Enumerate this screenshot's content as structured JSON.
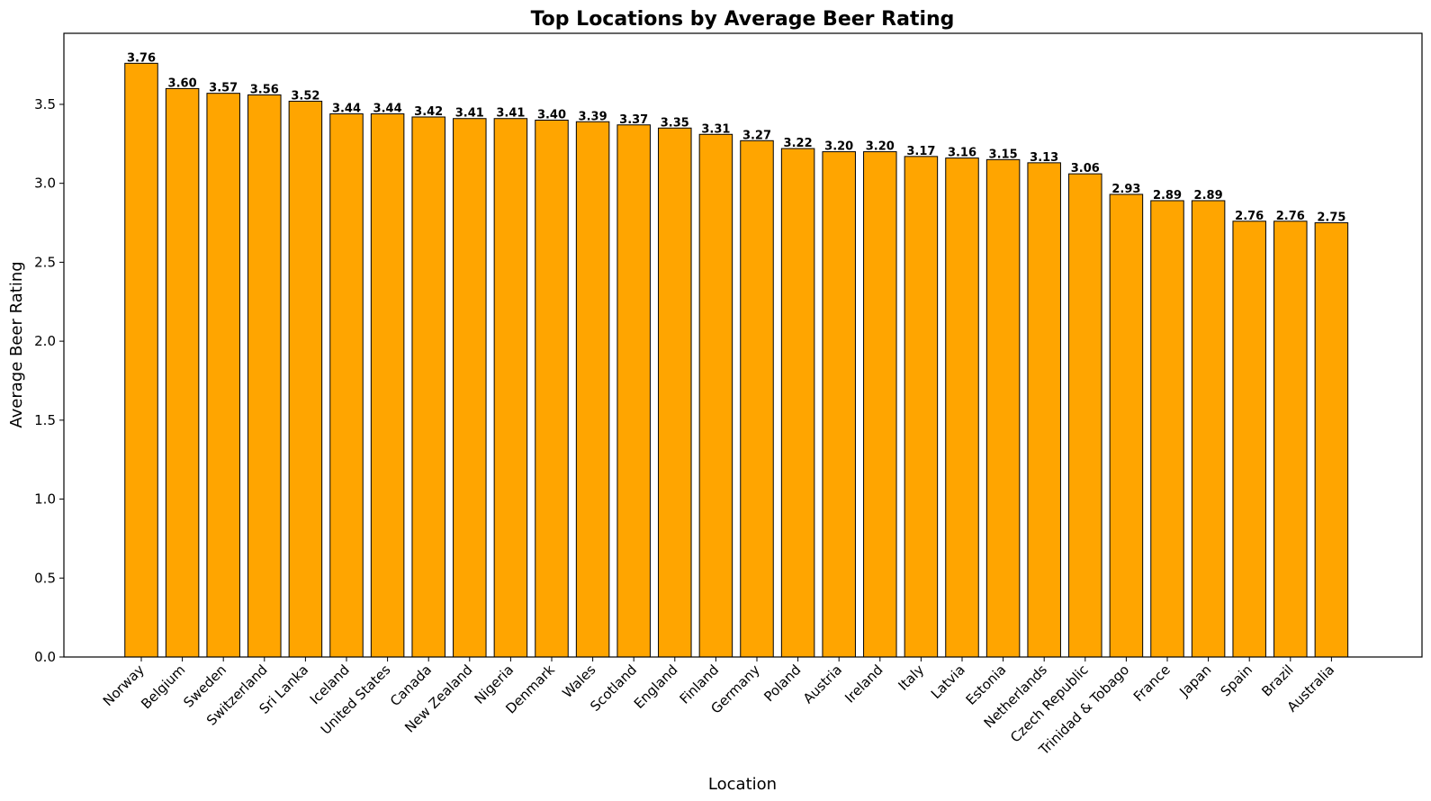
{
  "chart_data": {
    "type": "bar",
    "title": "Top Locations by Average Beer Rating",
    "xlabel": "Location",
    "ylabel": "Average Beer Rating",
    "ylim": [
      0,
      3.95
    ],
    "yticks": [
      0.0,
      0.5,
      1.0,
      1.5,
      2.0,
      2.5,
      3.0,
      3.5
    ],
    "ytick_labels": [
      "0.0",
      "0.5",
      "1.0",
      "1.5",
      "2.0",
      "2.5",
      "3.0",
      "3.5"
    ],
    "grid": false,
    "bar_color": "#FFA500",
    "edge_color": "#000000",
    "categories": [
      "Norway",
      "Belgium",
      "Sweden",
      "Switzerland",
      "Sri Lanka",
      "Iceland",
      "United States",
      "Canada",
      "New Zealand",
      "Nigeria",
      "Denmark",
      "Wales",
      "Scotland",
      "England",
      "Finland",
      "Germany",
      "Poland",
      "Austria",
      "Ireland",
      "Italy",
      "Latvia",
      "Estonia",
      "Netherlands",
      "Czech Republic",
      "Trinidad & Tobago",
      "France",
      "Japan",
      "Spain",
      "Brazil",
      "Australia"
    ],
    "values": [
      3.76,
      3.6,
      3.57,
      3.56,
      3.52,
      3.44,
      3.44,
      3.42,
      3.41,
      3.41,
      3.4,
      3.39,
      3.37,
      3.35,
      3.31,
      3.27,
      3.22,
      3.2,
      3.2,
      3.17,
      3.16,
      3.15,
      3.13,
      3.06,
      2.93,
      2.89,
      2.89,
      2.76,
      2.76,
      2.75
    ],
    "value_labels": [
      "3.76",
      "3.60",
      "3.57",
      "3.56",
      "3.52",
      "3.44",
      "3.44",
      "3.42",
      "3.41",
      "3.41",
      "3.40",
      "3.39",
      "3.37",
      "3.35",
      "3.31",
      "3.27",
      "3.22",
      "3.20",
      "3.20",
      "3.17",
      "3.16",
      "3.15",
      "3.13",
      "3.06",
      "2.93",
      "2.89",
      "2.89",
      "2.76",
      "2.76",
      "2.75"
    ]
  }
}
